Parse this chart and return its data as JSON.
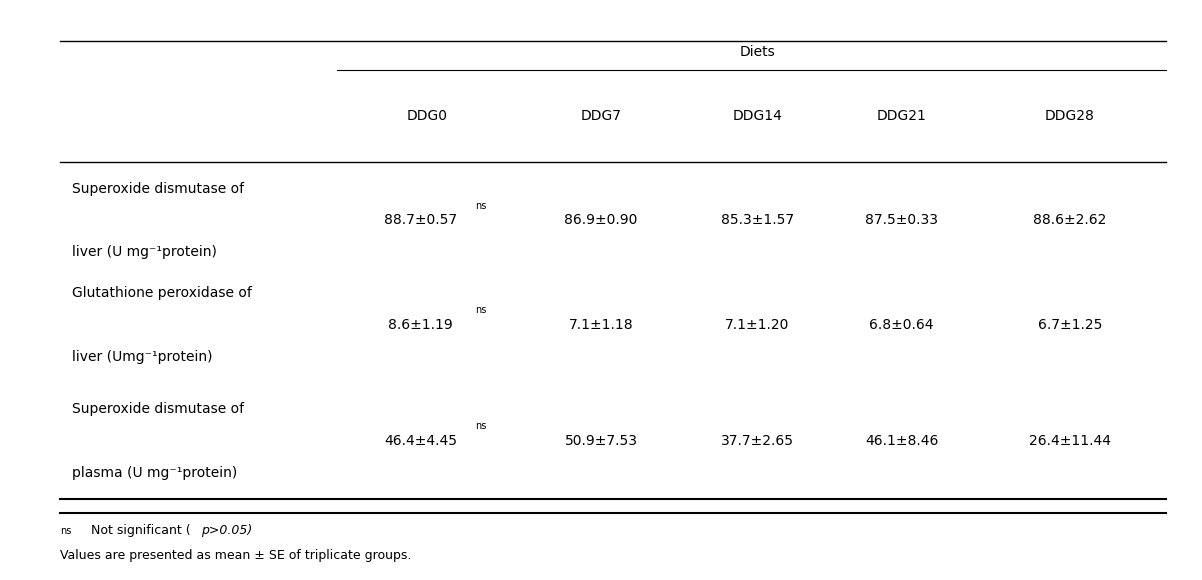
{
  "title_group": "Diets",
  "col_headers": [
    "DDG0",
    "DDG7",
    "DDG14",
    "DDG21",
    "DDG28"
  ],
  "row_labels": [
    [
      "Superoxide dismutase of",
      "liver (U mg⁻¹protein)"
    ],
    [
      "Glutathione peroxidase of",
      "liver (Umg⁻¹protein)"
    ],
    [
      "Superoxide dismutase of",
      "plasma (U mg⁻¹protein)"
    ]
  ],
  "data": [
    [
      "88.7±0.57",
      "86.9±0.90",
      "85.3±1.57",
      "87.5±0.33",
      "88.6±2.62"
    ],
    [
      "8.6±1.19",
      "7.1±1.18",
      "7.1±1.20",
      "6.8±0.64",
      "6.7±1.25"
    ],
    [
      "46.4±4.45",
      "50.9±7.53",
      "37.7±2.65",
      "46.1±8.46",
      "26.4±11.44"
    ]
  ],
  "ns_superscript": [
    true,
    true,
    true
  ],
  "footnote1": "ns  Not significant (p>0.05)",
  "footnote2": "Values are presented as mean ± SE of triplicate groups.",
  "bg_color": "#ffffff",
  "text_color": "#000000",
  "line_color": "#000000",
  "font_size": 10,
  "header_font_size": 10,
  "footnote_font_size": 9
}
